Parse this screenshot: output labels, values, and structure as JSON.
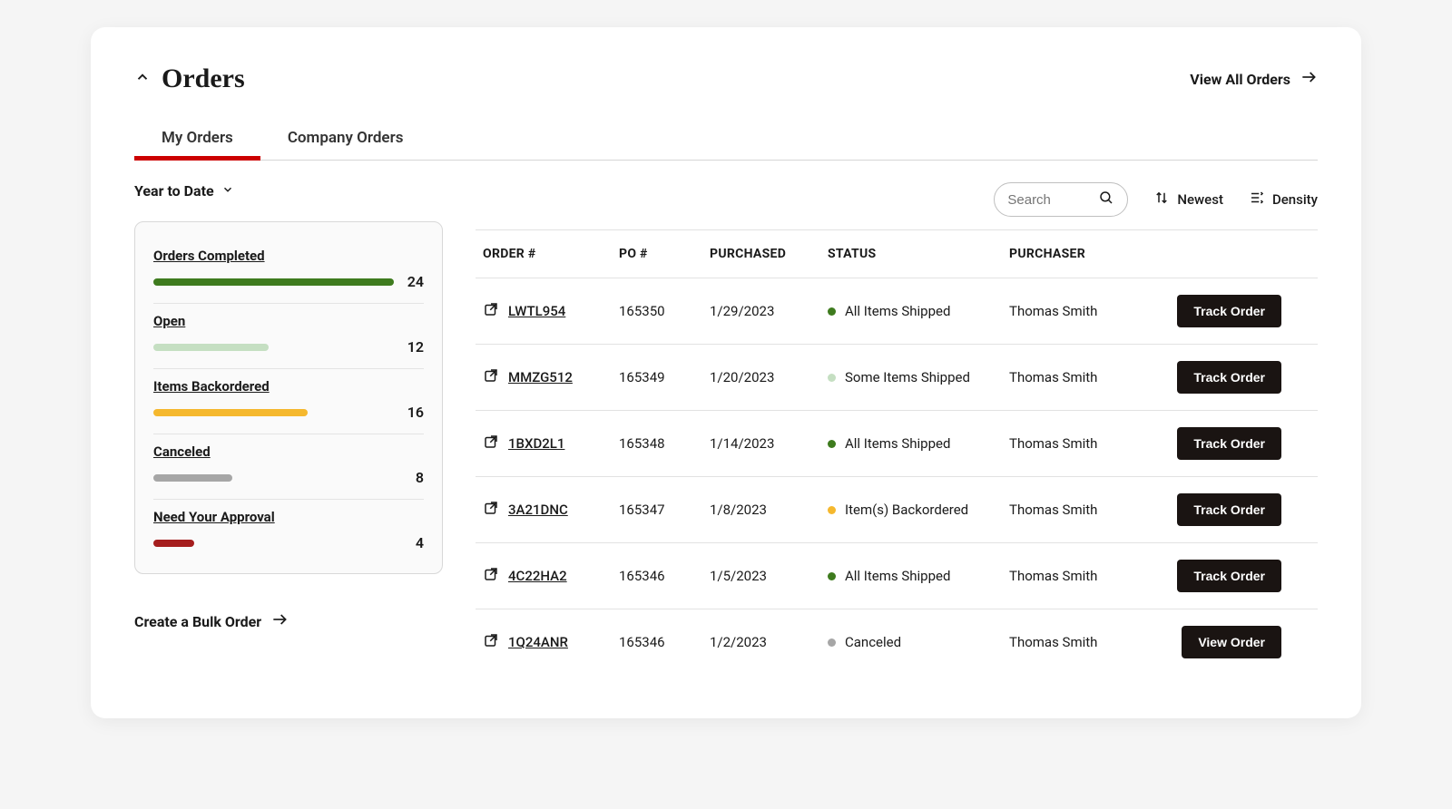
{
  "header": {
    "page_title": "Orders",
    "view_all_label": "View All Orders"
  },
  "tabs": [
    {
      "label": "My Orders",
      "active": true
    },
    {
      "label": "Company Orders",
      "active": false
    }
  ],
  "filter": {
    "label": "Year to Date"
  },
  "toolbar": {
    "search_placeholder": "Search",
    "sort_label": "Newest",
    "density_label": "Density"
  },
  "summary_bar_track_width": 265,
  "summary": [
    {
      "label": "Orders Completed",
      "count": 24,
      "bar_color": "#3e7b1e",
      "bar_width_pct": 100
    },
    {
      "label": "Open",
      "count": 12,
      "bar_color": "#c5dfc2",
      "bar_width_pct": 48
    },
    {
      "label": "Items Backordered",
      "count": 16,
      "bar_color": "#f5b82e",
      "bar_width_pct": 64
    },
    {
      "label": "Canceled",
      "count": 8,
      "bar_color": "#a6a6a6",
      "bar_width_pct": 33
    },
    {
      "label": "Need Your Approval",
      "count": 4,
      "bar_color": "#a51d1d",
      "bar_width_pct": 17
    }
  ],
  "bulk_link_label": "Create a Bulk Order",
  "columns": [
    "ORDER #",
    "PO #",
    "PURCHASED",
    "STATUS",
    "PURCHASER",
    ""
  ],
  "status_colors": {
    "All Items Shipped": "#3e7b1e",
    "Some Items Shipped": "#c5dfc2",
    "Item(s) Backordered": "#f5b82e",
    "Canceled": "#a6a6a6"
  },
  "rows": [
    {
      "order": "LWTL954",
      "po": "165350",
      "purchased": "1/29/2023",
      "status": "All Items Shipped",
      "purchaser": "Thomas Smith",
      "action": "Track Order"
    },
    {
      "order": "MMZG512",
      "po": "165349",
      "purchased": "1/20/2023",
      "status": "Some Items Shipped",
      "purchaser": "Thomas Smith",
      "action": "Track Order"
    },
    {
      "order": "1BXD2L1",
      "po": "165348",
      "purchased": "1/14/2023",
      "status": "All Items Shipped",
      "purchaser": "Thomas Smith",
      "action": "Track Order"
    },
    {
      "order": "3A21DNC",
      "po": "165347",
      "purchased": "1/8/2023",
      "status": "Item(s) Backordered",
      "purchaser": "Thomas Smith",
      "action": "Track Order"
    },
    {
      "order": "4C22HA2",
      "po": "165346",
      "purchased": "1/5/2023",
      "status": "All Items Shipped",
      "purchaser": "Thomas Smith",
      "action": "Track Order"
    },
    {
      "order": "1Q24ANR",
      "po": "165346",
      "purchased": "1/2/2023",
      "status": "Canceled",
      "purchaser": "Thomas Smith",
      "action": "View Order"
    }
  ]
}
